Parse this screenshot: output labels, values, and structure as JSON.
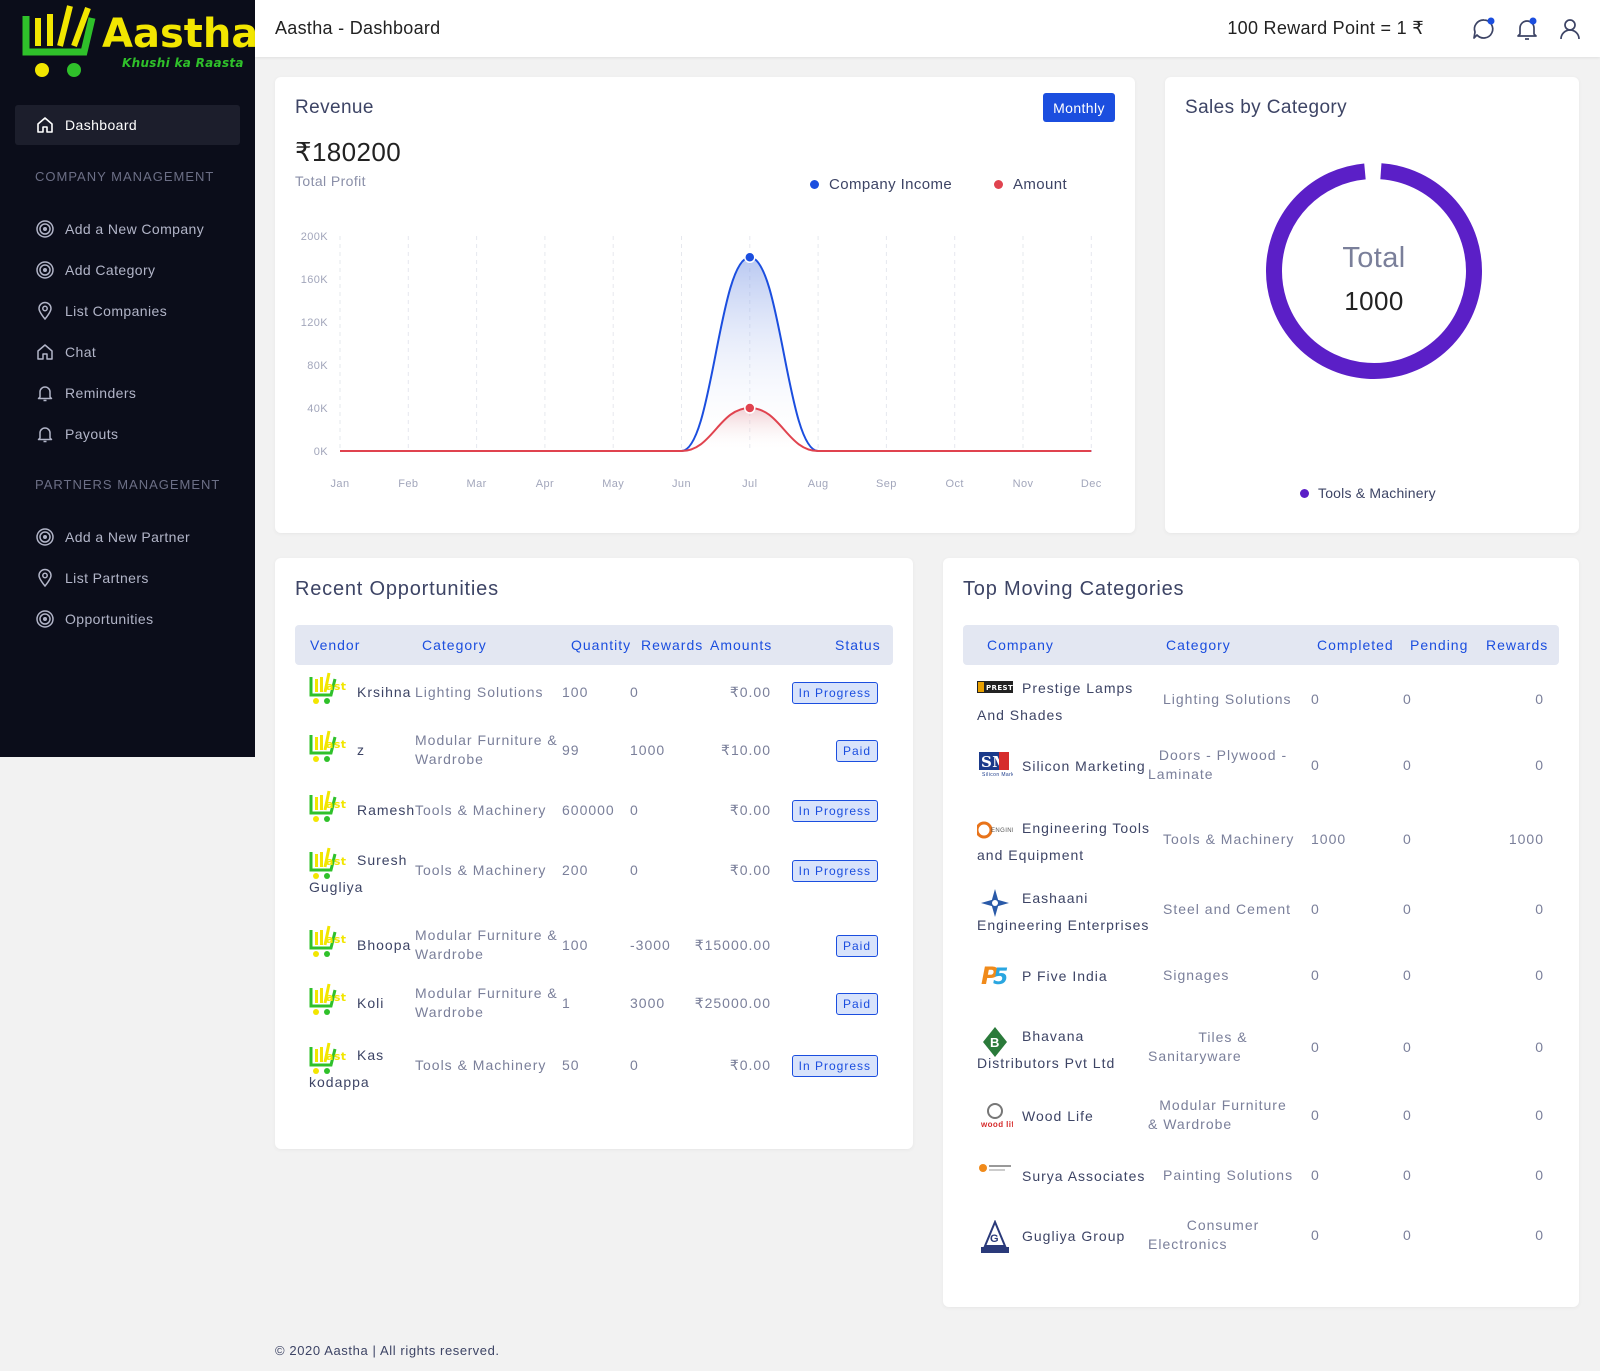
{
  "brand": {
    "name": "Aastha",
    "tagline": "Khushi ka Raasta"
  },
  "sidebar": {
    "active": "Dashboard",
    "sections": [
      {
        "title": "COMPANY MANAGEMENT",
        "items": [
          "Add a New Company",
          "Add Category",
          "List Companies",
          "Chat",
          "Reminders",
          "Payouts"
        ]
      },
      {
        "title": "PARTNERS MANAGEMENT",
        "items": [
          "Add a New Partner",
          "List Partners",
          "Opportunities"
        ]
      }
    ]
  },
  "header": {
    "title": "Aastha - Dashboard",
    "reward": "100 Reward Point = 1 ₹"
  },
  "revenue": {
    "title": "Revenue",
    "period_button": "Monthly",
    "amount": "₹180200",
    "subtitle": "Total Profit",
    "legend": [
      {
        "name": "Company Income",
        "color": "#1b4edf"
      },
      {
        "name": "Amount",
        "color": "#e0434f"
      }
    ]
  },
  "chart_data": {
    "type": "area",
    "categories": [
      "Jan",
      "Feb",
      "Mar",
      "Apr",
      "May",
      "Jun",
      "Jul",
      "Aug",
      "Sep",
      "Oct",
      "Nov",
      "Dec"
    ],
    "y_ticks": [
      "200K",
      "160K",
      "120K",
      "80K",
      "40K",
      "0K"
    ],
    "ylim": [
      0,
      200000
    ],
    "grid": true,
    "series": [
      {
        "name": "Company Income",
        "color": "#1b4edf",
        "values": [
          0,
          0,
          0,
          0,
          0,
          0,
          180200,
          0,
          0,
          0,
          0,
          0
        ]
      },
      {
        "name": "Amount",
        "color": "#e0434f",
        "values": [
          0,
          0,
          0,
          0,
          0,
          0,
          40000,
          0,
          0,
          0,
          0,
          0
        ]
      }
    ]
  },
  "sales": {
    "title": "Sales by Category",
    "center_label": "Total",
    "center_value": "1000",
    "legend": "Tools & Machinery",
    "color": "#5b1fc7",
    "chart_data": {
      "type": "pie",
      "categories": [
        "Tools & Machinery"
      ],
      "values": [
        1000
      ]
    }
  },
  "opportunities": {
    "title": "Recent Opportunities",
    "columns": [
      "Vendor",
      "Category",
      "Quantity",
      "Rewards",
      "Amounts",
      "Status"
    ],
    "rows": [
      {
        "vendor1": "Krsihna",
        "vendor2": "",
        "cat1": "Lighting Solutions",
        "cat2": "",
        "qty": "100",
        "rewards": "0",
        "amount": "₹0.00",
        "status": "In Progress"
      },
      {
        "vendor1": "z",
        "vendor2": "",
        "cat1": "Modular Furniture &",
        "cat2": "Wardrobe",
        "qty": "99",
        "rewards": "1000",
        "amount": "₹10.00",
        "status": "Paid"
      },
      {
        "vendor1": "Ramesh",
        "vendor2": "",
        "cat1": "Tools & Machinery",
        "cat2": "",
        "qty": "600000",
        "rewards": "0",
        "amount": "₹0.00",
        "status": "In Progress"
      },
      {
        "vendor1": "Suresh",
        "vendor2": "Gugliya",
        "cat1": "Tools & Machinery",
        "cat2": "",
        "qty": "200",
        "rewards": "0",
        "amount": "₹0.00",
        "status": "In Progress"
      },
      {
        "vendor1": "Bhoopa",
        "vendor2": "",
        "cat1": "Modular Furniture &",
        "cat2": "Wardrobe",
        "qty": "100",
        "rewards": "-3000",
        "amount": "₹15000.00",
        "status": "Paid"
      },
      {
        "vendor1": "Koli",
        "vendor2": "",
        "cat1": "Modular Furniture &",
        "cat2": "Wardrobe",
        "qty": "1",
        "rewards": "3000",
        "amount": "₹25000.00",
        "status": "Paid"
      },
      {
        "vendor1": "Kas",
        "vendor2": "kodappa",
        "cat1": "Tools & Machinery",
        "cat2": "",
        "qty": "50",
        "rewards": "0",
        "amount": "₹0.00",
        "status": "In Progress"
      }
    ]
  },
  "top_categories": {
    "title": "Top Moving Categories",
    "columns": [
      "Company",
      "Category",
      "Completed",
      "Pending",
      "Rewards"
    ],
    "rows": [
      {
        "c1": "Prestige Lamps",
        "c2": "And Shades",
        "cat1": "Lighting Solutions",
        "cat2": "",
        "completed": "0",
        "pending": "0",
        "rewards": "0",
        "logo": "prestige-logo"
      },
      {
        "c1": "Silicon Marketing",
        "c2": "",
        "cat1": "Doors - Plywood -",
        "cat2": "Laminate",
        "completed": "0",
        "pending": "0",
        "rewards": "0",
        "logo": "sm-logo"
      },
      {
        "c1": "Engineering Tools",
        "c2": "and Equipment",
        "cat1": "Tools & Machinery",
        "cat2": "",
        "completed": "1000",
        "pending": "0",
        "rewards": "1000",
        "logo": "engineering-logo"
      },
      {
        "c1": "Eashaani",
        "c2": "Engineering Enterprises",
        "cat1": "Steel and Cement",
        "cat2": "",
        "completed": "0",
        "pending": "0",
        "rewards": "0",
        "logo": "eashaani-logo"
      },
      {
        "c1": "P Five India",
        "c2": "",
        "cat1": "Signages",
        "cat2": "",
        "completed": "0",
        "pending": "0",
        "rewards": "0",
        "logo": "p5-logo"
      },
      {
        "c1": "Bhavana",
        "c2": "Distributors Pvt Ltd",
        "cat1": "Tiles &",
        "cat2": "Sanitaryware",
        "completed": "0",
        "pending": "0",
        "rewards": "0",
        "logo": "bhavana-logo"
      },
      {
        "c1": "Wood Life",
        "c2": "",
        "cat1": "Modular Furniture",
        "cat2": "& Wardrobe",
        "completed": "0",
        "pending": "0",
        "rewards": "0",
        "logo": "woodlife-logo"
      },
      {
        "c1": "Surya Associates",
        "c2": "",
        "cat1": "Painting Solutions",
        "cat2": "",
        "completed": "0",
        "pending": "0",
        "rewards": "0",
        "logo": "surya-logo"
      },
      {
        "c1": "Gugliya Group",
        "c2": "",
        "cat1": "Consumer",
        "cat2": "Electronics",
        "completed": "0",
        "pending": "0",
        "rewards": "0",
        "logo": "gugliya-logo"
      }
    ]
  },
  "footer": "© 2020 Aastha | All rights reserved."
}
